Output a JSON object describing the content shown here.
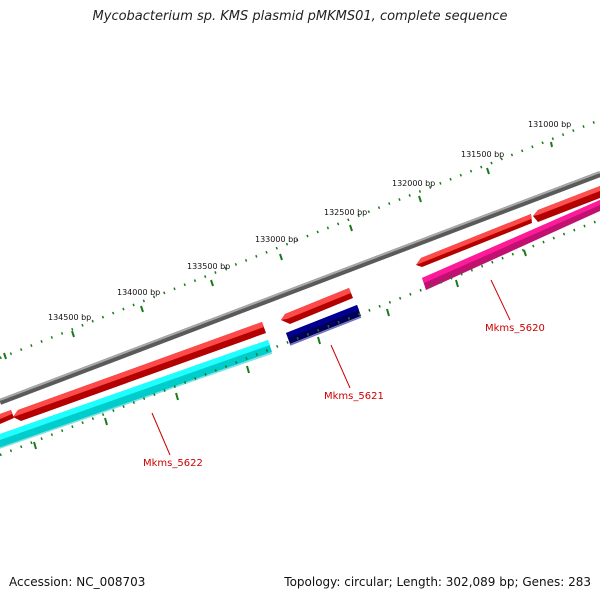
{
  "title": "Mycobacterium sp. KMS plasmid pMKMS01, complete sequence",
  "footer": {
    "accession": "Accession: NC_008703",
    "summary": "Topology: circular; Length: 302,089 bp; Genes: 283"
  },
  "ruler_labels": {
    "l131000": "131000 bp",
    "l131500": "131500 bp",
    "l132000": "132000 bp",
    "l132500": "132500 bp",
    "l133000": "133000 bp",
    "l133500": "133500 bp",
    "l134000": "134000 bp",
    "l134500": "134500 bp"
  },
  "genes": {
    "g5620": "Mkms_5620",
    "g5621": "Mkms_5621",
    "g5622": "Mkms_5622"
  },
  "colors": {
    "backbone": "#808080",
    "forward_cds": "#ff0000",
    "reverse_pink": "#ff1a9a",
    "reverse_navy": "#00007a",
    "reverse_cyan": "#00ffff",
    "tick": "#1a7a1a",
    "label_red": "#cc0000"
  }
}
